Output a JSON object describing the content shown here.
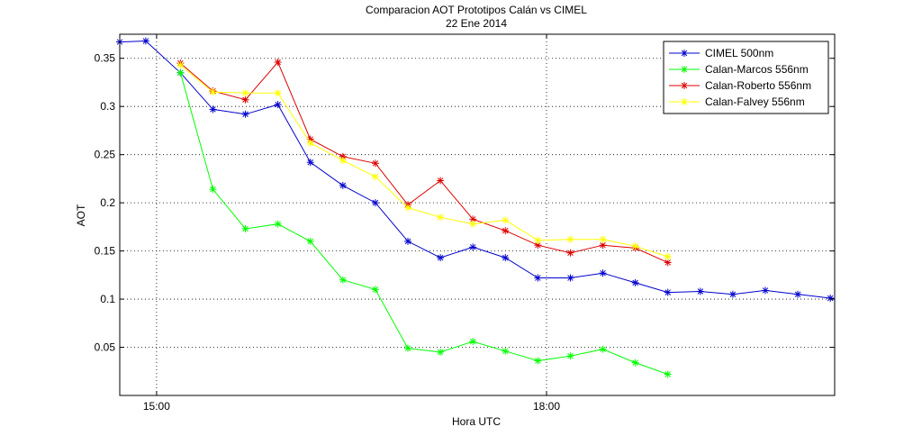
{
  "chart_data": {
    "type": "line",
    "title": "Comparacion AOT Prototipos Calán vs CIMEL",
    "subtitle": "22 Ene 2014",
    "xlabel": "Hora UTC",
    "ylabel": "AOT",
    "xlim": [
      "14:43",
      "20:13"
    ],
    "ylim": [
      0.0,
      0.375
    ],
    "x_ticks": [
      "15:00",
      "18:00"
    ],
    "y_ticks": [
      0.05,
      0.1,
      0.15,
      0.2,
      0.25,
      0.3,
      0.35
    ],
    "y_tick_labels": [
      "0.05",
      "0.1",
      "0.15",
      "0.2",
      "0.25",
      "0.3",
      "0.35"
    ],
    "grid": true,
    "legend_position": "top-right",
    "series": [
      {
        "name": "CIMEL 500nm",
        "color": "#0000cc",
        "x": [
          "14:43",
          "14:55",
          "15:11",
          "15:26",
          "15:41",
          "15:56",
          "16:11",
          "16:26",
          "16:41",
          "16:56",
          "17:11",
          "17:26",
          "17:41",
          "17:56",
          "18:11",
          "18:26",
          "18:41",
          "18:56",
          "19:11",
          "19:26",
          "19:41",
          "19:56",
          "20:11",
          "20:13"
        ],
        "values": [
          0.367,
          0.368,
          0.335,
          0.297,
          0.292,
          0.302,
          0.242,
          0.218,
          0.2,
          0.16,
          0.143,
          0.154,
          0.143,
          0.122,
          0.122,
          0.127,
          0.117,
          0.107,
          0.108,
          0.105,
          0.109,
          0.105,
          0.101,
          0.1
        ]
      },
      {
        "name": "Calan-Marcos 556nm",
        "color": "#00ff00",
        "x": [
          "15:11",
          "15:26",
          "15:41",
          "15:56",
          "16:11",
          "16:26",
          "16:41",
          "16:56",
          "17:11",
          "17:26",
          "17:41",
          "17:56",
          "18:11",
          "18:26",
          "18:41",
          "18:56"
        ],
        "values": [
          0.335,
          0.214,
          0.173,
          0.178,
          0.16,
          0.12,
          0.11,
          0.049,
          0.045,
          0.056,
          0.046,
          0.036,
          0.041,
          0.048,
          0.034,
          0.022
        ]
      },
      {
        "name": "Calan-Roberto 556nm",
        "color": "#dd0000",
        "x": [
          "15:11",
          "15:26",
          "15:41",
          "15:56",
          "16:11",
          "16:26",
          "16:41",
          "16:56",
          "17:11",
          "17:26",
          "17:41",
          "17:56",
          "18:11",
          "18:26",
          "18:41",
          "18:56"
        ],
        "values": [
          0.345,
          0.316,
          0.307,
          0.346,
          0.266,
          0.248,
          0.241,
          0.198,
          0.223,
          0.183,
          0.171,
          0.156,
          0.148,
          0.156,
          0.153,
          0.138
        ]
      },
      {
        "name": "Calan-Falvey 556nm",
        "color": "#ffff00",
        "x": [
          "15:11",
          "15:26",
          "15:41",
          "15:56",
          "16:11",
          "16:26",
          "16:41",
          "16:56",
          "17:11",
          "17:26",
          "17:41",
          "17:56",
          "18:11",
          "18:26",
          "18:41",
          "18:56"
        ],
        "values": [
          0.343,
          0.315,
          0.314,
          0.314,
          0.262,
          0.244,
          0.227,
          0.195,
          0.185,
          0.178,
          0.182,
          0.161,
          0.162,
          0.162,
          0.155,
          0.144
        ]
      }
    ]
  }
}
